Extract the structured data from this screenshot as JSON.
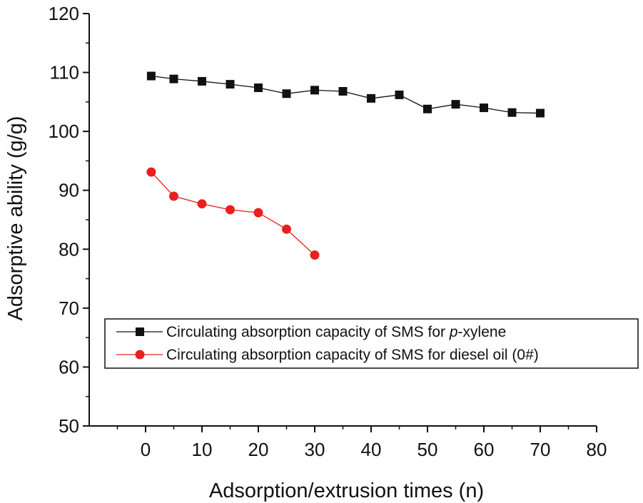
{
  "chart_data": {
    "type": "line",
    "title": "",
    "xlabel": "Adsorption/extrusion times (n)",
    "ylabel": "Adsorptive ability (g/g)",
    "xlim": [
      -10,
      80
    ],
    "ylim": [
      50,
      120
    ],
    "xticks": [
      0,
      10,
      20,
      30,
      40,
      50,
      60,
      70,
      80
    ],
    "yticks": [
      50,
      60,
      70,
      80,
      90,
      100,
      110,
      120
    ],
    "grid": false,
    "legend_position": "inside-lower",
    "series": [
      {
        "name": "Circulating absorption capacity of SMS for p-xylene",
        "name_prefix": "Circulating absorption capacity of SMS for ",
        "name_italic": "p",
        "name_suffix": "-xylene",
        "marker": "square",
        "color": "#111111",
        "x": [
          1,
          5,
          10,
          15,
          20,
          25,
          30,
          35,
          40,
          45,
          50,
          55,
          60,
          65,
          70
        ],
        "values": [
          109.4,
          108.9,
          108.5,
          108.0,
          107.4,
          106.4,
          107.0,
          106.8,
          105.6,
          106.2,
          103.8,
          104.6,
          104.0,
          103.2,
          103.1
        ]
      },
      {
        "name": "Circulating absorption capacity of SMS for diesel oil (0#)",
        "marker": "circle",
        "color": "#e8201f",
        "x": [
          1,
          5,
          10,
          15,
          20,
          25,
          30
        ],
        "values": [
          93.1,
          89.0,
          87.7,
          86.7,
          86.2,
          83.4,
          79.0
        ]
      }
    ]
  }
}
